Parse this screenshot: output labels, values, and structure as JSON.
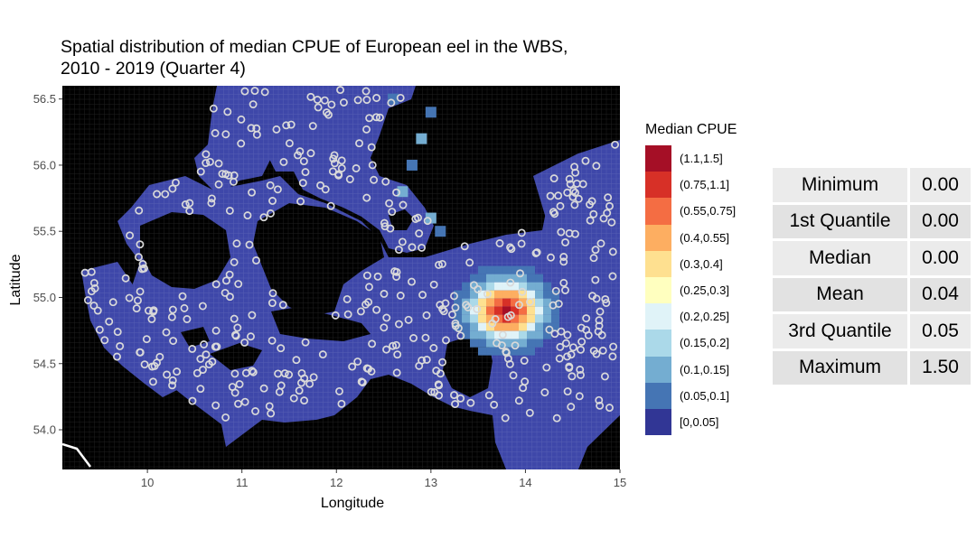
{
  "chart_data": {
    "type": "heatmap",
    "title_lines": [
      "Spatial distribution of median CPUE of European eel in the WBS,",
      "2010 - 2019 (Quarter 4)"
    ],
    "xlabel": "Longitude",
    "ylabel": "Latitude",
    "xlim": [
      9.1,
      15.0
    ],
    "ylim": [
      53.7,
      56.6
    ],
    "x_ticks": [
      "10",
      "11",
      "12",
      "13",
      "14",
      "15"
    ],
    "y_ticks": [
      "54.0",
      "54.5",
      "55.0",
      "55.5",
      "56.0",
      "56.5"
    ],
    "legend_title": "Median CPUE",
    "legend": [
      {
        "label": "(1.1,1.5]",
        "color": "#a50f26"
      },
      {
        "label": "(0.75,1.1]",
        "color": "#d73027"
      },
      {
        "label": "(0.55,0.75]",
        "color": "#f46d43"
      },
      {
        "label": "(0.4,0.55]",
        "color": "#fdae61"
      },
      {
        "label": "(0.3,0.4]",
        "color": "#fee090"
      },
      {
        "label": "(0.25,0.3]",
        "color": "#ffffbf"
      },
      {
        "label": "(0.2,0.25]",
        "color": "#e0f3f8"
      },
      {
        "label": "(0.15,0.2]",
        "color": "#abd9e9"
      },
      {
        "label": "(0.1,0.15]",
        "color": "#74add1"
      },
      {
        "label": "(0.05,0.1]",
        "color": "#4575b4"
      },
      {
        "label": "[0,0.05]",
        "color": "#313695"
      }
    ],
    "hotspot": {
      "lon": 13.8,
      "lat": 54.9,
      "max_cpue": 1.5
    },
    "sea_color": "#3e47a9",
    "land_color": "#000000",
    "point_color": "#d9d9d9",
    "grid": false
  },
  "summary": [
    {
      "name": "Minimum",
      "value": "0.00"
    },
    {
      "name": "1st Quantile",
      "value": "0.00"
    },
    {
      "name": "Median",
      "value": "0.00"
    },
    {
      "name": "Mean",
      "value": "0.04"
    },
    {
      "name": "3rd Quantile",
      "value": "0.05"
    },
    {
      "name": "Maximum",
      "value": "1.50"
    }
  ]
}
